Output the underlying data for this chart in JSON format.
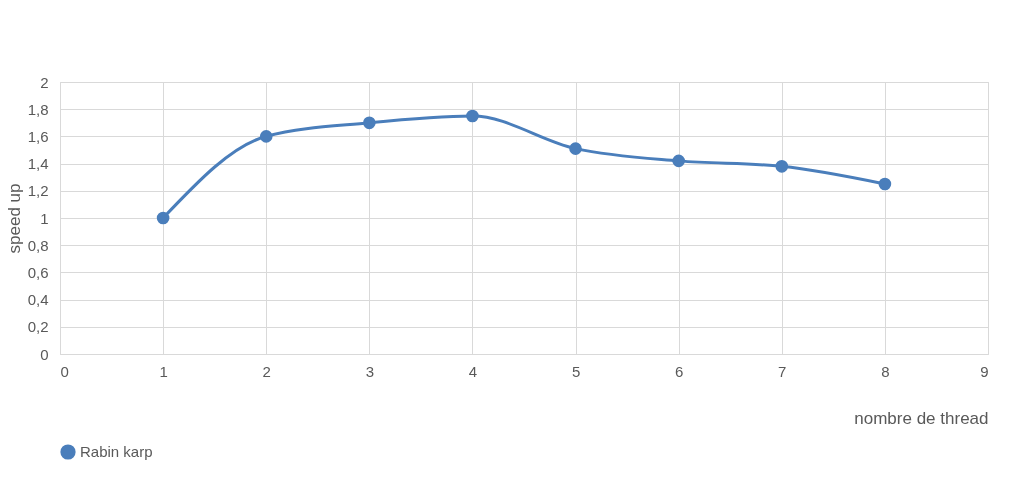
{
  "chart_data": {
    "type": "line",
    "xlabel": "nombre de thread",
    "ylabel": "speed up",
    "x": [
      1,
      2,
      3,
      4,
      5,
      6,
      7,
      8
    ],
    "series": [
      {
        "name": "Rabin karp",
        "color": "#4a7ebb",
        "values": [
          1,
          1.6,
          1.7,
          1.75,
          1.51,
          1.42,
          1.38,
          1.25
        ]
      }
    ],
    "xlim": [
      0,
      9
    ],
    "xticks": [
      0,
      1,
      2,
      3,
      4,
      5,
      6,
      7,
      8,
      9
    ],
    "ylim": [
      0,
      2
    ],
    "yticks": [
      0,
      {
        "value": 0.2,
        "label": "0,2"
      },
      {
        "value": 0.4,
        "label": "0,4"
      },
      {
        "value": 0.6,
        "label": "0,6"
      },
      {
        "value": 0.8,
        "label": "0,8"
      },
      1,
      {
        "value": 1.2,
        "label": "1,2"
      },
      {
        "value": 1.4,
        "label": "1,4"
      },
      {
        "value": 1.6,
        "label": "1,6"
      },
      {
        "value": 1.8,
        "label": "1,8"
      },
      2
    ],
    "grid": true,
    "legend": "bottom",
    "marker": "circle",
    "line_style": "solid"
  }
}
